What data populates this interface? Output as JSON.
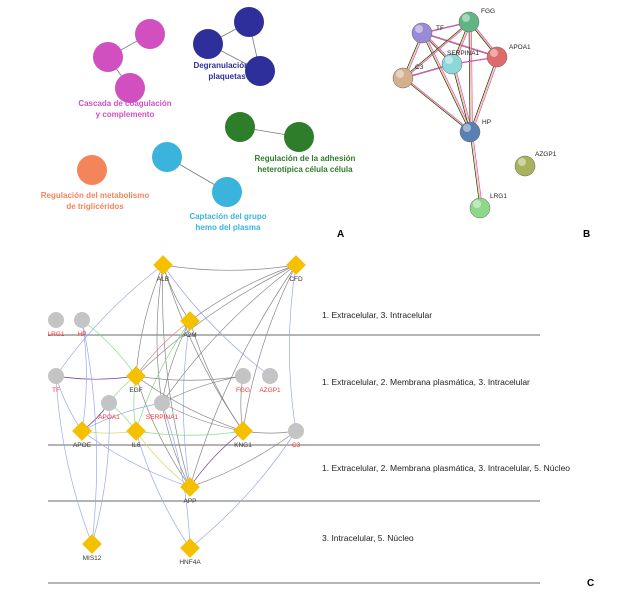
{
  "panel_labels": {
    "a": "A",
    "b": "B",
    "c": "C"
  },
  "panel_a": {
    "clusters": [
      {
        "label_lines": [
          "Cascada de coagulación",
          "y complemento"
        ],
        "color": "#d24fc0",
        "nodes": 3
      },
      {
        "label_lines": [
          "Degranulación de",
          "plaquetas"
        ],
        "color": "#2e2f9a",
        "nodes": 3
      },
      {
        "label_lines": [
          "Regulación de la adhesión",
          "heterotípica célula célula"
        ],
        "color": "#2e7d2a",
        "nodes": 2
      },
      {
        "label_lines": [
          "Regulación del metabolismo",
          "de triglicéridos"
        ],
        "color": "#f4845a",
        "nodes": 1
      },
      {
        "label_lines": [
          "Captación del grupo",
          "hemo del plasma"
        ],
        "color": "#3ab4dc",
        "nodes": 2
      }
    ]
  },
  "panel_b": {
    "nodes": [
      {
        "id": "TF",
        "color": "#9b8ad8"
      },
      {
        "id": "FGG",
        "color": "#5fb584"
      },
      {
        "id": "APOA1",
        "color": "#e06a6a"
      },
      {
        "id": "SERPINA1",
        "color": "#8ad8d8"
      },
      {
        "id": "C3",
        "color": "#d4b08e"
      },
      {
        "id": "HP",
        "color": "#5a7fb2"
      },
      {
        "id": "AZGP1",
        "color": "#a8b25a"
      },
      {
        "id": "LRG1",
        "color": "#8fd88a"
      }
    ],
    "edges": [
      [
        "TF",
        "FGG"
      ],
      [
        "TF",
        "APOA1"
      ],
      [
        "TF",
        "SERPINA1"
      ],
      [
        "TF",
        "C3"
      ],
      [
        "TF",
        "HP"
      ],
      [
        "FGG",
        "APOA1"
      ],
      [
        "FGG",
        "SERPINA1"
      ],
      [
        "FGG",
        "C3"
      ],
      [
        "FGG",
        "HP"
      ],
      [
        "APOA1",
        "SERPINA1"
      ],
      [
        "APOA1",
        "HP"
      ],
      [
        "SERPINA1",
        "C3"
      ],
      [
        "SERPINA1",
        "HP"
      ],
      [
        "C3",
        "HP"
      ],
      [
        "HP",
        "LRG1"
      ]
    ]
  },
  "panel_c": {
    "compartments": [
      "1. Extracelular, 3. Intracelular",
      "1. Extracelular, 2. Membrana plasmática, 3. Intracelular",
      "1. Extracelular, 2. Membrana plasmática, 3. Intracelular, 5. Núcleo",
      "3. Intracelular, 5. Núcleo"
    ],
    "query_color": "#ff3333",
    "gene_color": "#f5c000",
    "nodes": [
      {
        "id": "ALB",
        "shape": "diamond",
        "query": false
      },
      {
        "id": "CFD",
        "shape": "diamond",
        "query": false
      },
      {
        "id": "A2M",
        "shape": "diamond",
        "query": false
      },
      {
        "id": "LRG1",
        "shape": "circle",
        "query": true
      },
      {
        "id": "HP",
        "shape": "circle",
        "query": true
      },
      {
        "id": "TF",
        "shape": "circle",
        "query": true
      },
      {
        "id": "EGF",
        "shape": "diamond",
        "query": false
      },
      {
        "id": "FGG",
        "shape": "circle",
        "query": true
      },
      {
        "id": "AZGP1",
        "shape": "circle",
        "query": true
      },
      {
        "id": "APOA1",
        "shape": "circle",
        "query": true
      },
      {
        "id": "SERPINA1",
        "shape": "circle",
        "query": true
      },
      {
        "id": "APOE",
        "shape": "diamond",
        "query": false
      },
      {
        "id": "IL6",
        "shape": "diamond",
        "query": false
      },
      {
        "id": "KNG1",
        "shape": "diamond",
        "query": false
      },
      {
        "id": "C3",
        "shape": "circle",
        "query": true
      },
      {
        "id": "APP",
        "shape": "diamond",
        "query": false
      },
      {
        "id": "MIS12",
        "shape": "diamond",
        "query": false
      },
      {
        "id": "HNF4A",
        "shape": "diamond",
        "query": false
      }
    ],
    "edges": [
      [
        "ALB",
        "A2M",
        "gray"
      ],
      [
        "ALB",
        "EGF",
        "gray"
      ],
      [
        "ALB",
        "KNG1",
        "gray"
      ],
      [
        "ALB",
        "APP",
        "gray"
      ],
      [
        "ALB",
        "CFD",
        "gray"
      ],
      [
        "ALB",
        "TF",
        "blue"
      ],
      [
        "ALB",
        "AZGP1",
        "blue"
      ],
      [
        "ALB",
        "SERPINA1",
        "gray"
      ],
      [
        "CFD",
        "A2M",
        "gray"
      ],
      [
        "CFD",
        "EGF",
        "gray"
      ],
      [
        "CFD",
        "SERPINA1",
        "gray"
      ],
      [
        "CFD",
        "KNG1",
        "gray"
      ],
      [
        "CFD",
        "APP",
        "gray"
      ],
      [
        "CFD",
        "C3",
        "blue"
      ],
      [
        "A2M",
        "EGF",
        "red"
      ],
      [
        "A2M",
        "APP",
        "blue"
      ],
      [
        "A2M",
        "KNG1",
        "gray"
      ],
      [
        "A2M",
        "IL6",
        "green"
      ],
      [
        "A2M",
        "SERPINA1",
        "gray"
      ],
      [
        "TF",
        "EGF",
        "purple"
      ],
      [
        "TF",
        "APOE",
        "blue"
      ],
      [
        "TF",
        "MIS12",
        "blue"
      ],
      [
        "EGF",
        "APOA1",
        "green"
      ],
      [
        "EGF",
        "IL6",
        "green"
      ],
      [
        "EGF",
        "KNG1",
        "gray"
      ],
      [
        "EGF",
        "APP",
        "gray"
      ],
      [
        "EGF",
        "FGG",
        "gray"
      ],
      [
        "EGF",
        "HP",
        "green"
      ],
      [
        "FGG",
        "KNG1",
        "gray"
      ],
      [
        "FGG",
        "SERPINA1",
        "gray"
      ],
      [
        "SERPINA1",
        "KNG1",
        "gray"
      ],
      [
        "SERPINA1",
        "APP",
        "gray"
      ],
      [
        "SERPINA1",
        "APOE",
        "blue"
      ],
      [
        "APOE",
        "IL6",
        "yellow"
      ],
      [
        "APOE",
        "APOA1",
        "purple"
      ],
      [
        "APOE",
        "APP",
        "blue"
      ],
      [
        "APOE",
        "HP",
        "blue"
      ],
      [
        "IL6",
        "KNG1",
        "green"
      ],
      [
        "IL6",
        "APP",
        "yellow"
      ],
      [
        "IL6",
        "HNF4A",
        "blue"
      ],
      [
        "IL6",
        "APOA1",
        "green"
      ],
      [
        "KNG1",
        "C3",
        "gray"
      ],
      [
        "KNG1",
        "APP",
        "purple"
      ],
      [
        "APP",
        "C3",
        "gray"
      ],
      [
        "MIS12",
        "HP",
        "blue"
      ],
      [
        "MIS12",
        "APOA1",
        "blue"
      ],
      [
        "HNF4A",
        "C3",
        "blue"
      ],
      [
        "HNF4A",
        "SERPINA1",
        "blue"
      ]
    ]
  }
}
